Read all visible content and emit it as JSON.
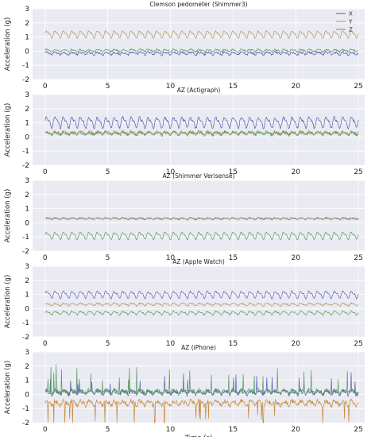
{
  "chart_data": [
    {
      "type": "line",
      "title": "Clemson pedometer (Shimmer3)",
      "xlabel": "",
      "ylabel": "Acceleration (g)",
      "xlim": [
        -1,
        25.5
      ],
      "ylim": [
        -2,
        3
      ],
      "xticks": [
        "0",
        "5",
        "10",
        "15",
        "20",
        "25"
      ],
      "yticks": [
        "-2",
        "-1",
        "0",
        "1",
        "2",
        "3"
      ],
      "grid": true,
      "legend": {
        "placement": "top-right",
        "entries": [
          "X",
          "Y",
          "Z"
        ]
      },
      "series": [
        {
          "name": "X",
          "color": "#5560b0",
          "baseline": -0.15,
          "amplitude": 0.12,
          "cycles": 37,
          "noise": 0.08,
          "spike_rate": 0.0,
          "spike_size": 0.0
        },
        {
          "name": "Y",
          "color": "#a89a5c",
          "baseline": 1.2,
          "amplitude": 0.3,
          "cycles": 37,
          "noise": 0.03,
          "spike_rate": 0.0,
          "spike_size": 0.0
        },
        {
          "name": "Z",
          "color": "#5a9a62",
          "baseline": 0.05,
          "amplitude": 0.1,
          "cycles": 37,
          "noise": 0.06,
          "spike_rate": 0.0,
          "spike_size": 0.0
        }
      ]
    },
    {
      "type": "line",
      "title": "AZ (Actigraph)",
      "xlabel": "",
      "ylabel": "Acceleration (g)",
      "xlim": [
        -1,
        25.5
      ],
      "ylim": [
        -2,
        3
      ],
      "xticks": [
        "0",
        "5",
        "10",
        "15",
        "20",
        "25"
      ],
      "yticks": [
        "-2",
        "-1",
        "0",
        "1",
        "2",
        "3"
      ],
      "grid": true,
      "series": [
        {
          "color": "#5560b0",
          "baseline": 1.05,
          "amplitude": 0.45,
          "cycles": 37,
          "noise": 0.08,
          "spike_rate": 0.0,
          "spike_size": 0.0
        },
        {
          "color": "#a89a5c",
          "baseline": 0.3,
          "amplitude": 0.12,
          "cycles": 37,
          "noise": 0.1,
          "spike_rate": 0.0,
          "spike_size": 0.0
        },
        {
          "color": "#5a9a62",
          "baseline": 0.25,
          "amplitude": 0.12,
          "cycles": 37,
          "noise": 0.1,
          "spike_rate": 0.0,
          "spike_size": 0.0
        }
      ]
    },
    {
      "type": "line",
      "title": "AZ (Shimmer Verisense)",
      "xlabel": "",
      "ylabel": "Acceleration (g)",
      "xlim": [
        -1,
        25.5
      ],
      "ylim": [
        -2,
        3
      ],
      "xticks": [
        "0",
        "5",
        "10",
        "15",
        "20",
        "25"
      ],
      "yticks": [
        "-2",
        "-1",
        "0",
        "1",
        "2",
        "3"
      ],
      "grid": true,
      "series": [
        {
          "color": "#5560b0",
          "baseline": 0.3,
          "amplitude": 0.06,
          "cycles": 37,
          "noise": 0.05,
          "spike_rate": 0.0,
          "spike_size": 0.0
        },
        {
          "color": "#a89a5c",
          "baseline": 0.3,
          "amplitude": 0.06,
          "cycles": 37,
          "noise": 0.05,
          "spike_rate": 0.0,
          "spike_size": 0.0
        },
        {
          "color": "#5a9a62",
          "baseline": -0.9,
          "amplitude": 0.3,
          "cycles": 37,
          "noise": 0.04,
          "spike_rate": 0.0,
          "spike_size": 0.0
        }
      ]
    },
    {
      "type": "line",
      "title": "AZ (Apple Watch)",
      "xlabel": "",
      "ylabel": "Acceleration (g)",
      "xlim": [
        -1,
        25.5
      ],
      "ylim": [
        -2,
        3
      ],
      "xticks": [
        "0",
        "5",
        "10",
        "15",
        "20",
        "25"
      ],
      "yticks": [
        "-2",
        "-1",
        "0",
        "1",
        "2",
        "3"
      ],
      "grid": true,
      "series": [
        {
          "color": "#6a5fc0",
          "baseline": 1.0,
          "amplitude": 0.3,
          "cycles": 37,
          "noise": 0.05,
          "spike_rate": 0.0,
          "spike_size": 0.0
        },
        {
          "color": "#a89a5c",
          "baseline": 0.3,
          "amplitude": 0.1,
          "cycles": 37,
          "noise": 0.05,
          "spike_rate": 0.0,
          "spike_size": 0.0
        },
        {
          "color": "#5a9a62",
          "baseline": -0.3,
          "amplitude": 0.15,
          "cycles": 37,
          "noise": 0.05,
          "spike_rate": 0.0,
          "spike_size": 0.0
        }
      ]
    },
    {
      "type": "line",
      "title": "AZ (iPhone)",
      "xlabel": "Time (s)",
      "ylabel": "Acceleration (g)",
      "xlim": [
        -1,
        25.5
      ],
      "ylim": [
        -2,
        3
      ],
      "xticks": [
        "0",
        "5",
        "10",
        "15",
        "20",
        "25"
      ],
      "yticks": [
        "-2",
        "-1",
        "0",
        "1",
        "2",
        "3"
      ],
      "grid": true,
      "series": [
        {
          "color": "#c98a3a",
          "baseline": -0.6,
          "amplitude": 0.2,
          "cycles": 37,
          "noise": 0.15,
          "spike_rate": 0.35,
          "spike_size": -0.9
        },
        {
          "color": "#5560b0",
          "baseline": 0.15,
          "amplitude": 0.15,
          "cycles": 37,
          "noise": 0.15,
          "spike_rate": 0.2,
          "spike_size": 0.6
        },
        {
          "color": "#5a9a62",
          "baseline": 0.2,
          "amplitude": 0.15,
          "cycles": 37,
          "noise": 0.15,
          "spike_rate": 0.25,
          "spike_size": 0.9
        }
      ]
    }
  ]
}
